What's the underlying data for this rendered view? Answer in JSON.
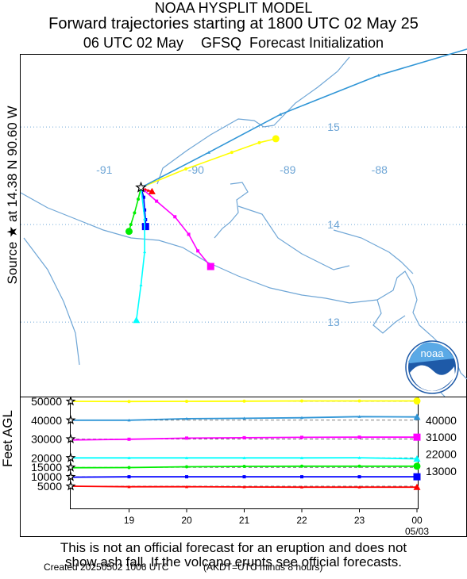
{
  "header": {
    "line1": "NOAA HYSPLIT MODEL",
    "line2": "Forward trajectories starting at 1800 UTC 02 May 25",
    "line3a": "06 UTC 02 May",
    "line3b": "GFSQ",
    "line3c": "Forecast Initialization"
  },
  "side_label": "Source ★ at  14.38 N  90.60 W",
  "disclaimer": {
    "line1": "This is not an official forecast for an eruption and does not",
    "line2": "show ash fall. If the volcano erupts see official forecasts."
  },
  "created": "Created 20250502 1006 UTC",
  "time_note": "(AKDT=UTC minus 8 hours)",
  "logo_text": "noaa",
  "chart_data": [
    {
      "type": "line",
      "map": {
        "lon_labels": [
          "-91",
          "-90",
          "-89",
          "-88"
        ],
        "lon_values": [
          -91,
          -90,
          -89,
          -88
        ],
        "lat_labels": [
          "15",
          "14",
          "13"
        ],
        "lat_values": [
          15,
          14,
          13
        ],
        "source": {
          "lat": 14.38,
          "lon": -90.6
        }
      },
      "series": [
        {
          "color": "#ff0000",
          "marker": "triangle",
          "points": [
            [
              -90.6,
              14.38
            ],
            [
              -90.58,
              14.37
            ],
            [
              -90.55,
              14.36
            ],
            [
              -90.52,
              14.35
            ],
            [
              -90.48,
              14.34
            ]
          ]
        },
        {
          "color": "#0000ff",
          "marker": "square",
          "points": [
            [
              -90.6,
              14.38
            ],
            [
              -90.57,
              14.28
            ],
            [
              -90.56,
              14.15
            ],
            [
              -90.55,
              14.05
            ],
            [
              -90.55,
              13.98
            ]
          ]
        },
        {
          "color": "#00ee00",
          "marker": "circle",
          "points": [
            [
              -90.6,
              14.38
            ],
            [
              -90.63,
              14.26
            ],
            [
              -90.67,
              14.12
            ],
            [
              -90.71,
              14.0
            ],
            [
              -90.73,
              13.93
            ]
          ]
        },
        {
          "color": "#00ffff",
          "marker": "triangle",
          "points": [
            [
              -90.6,
              14.38
            ],
            [
              -90.56,
              14.06
            ],
            [
              -90.56,
              13.72
            ],
            [
              -90.6,
              13.38
            ],
            [
              -90.65,
              13.02
            ]
          ]
        },
        {
          "color": "#ff00ff",
          "marker": "square",
          "points": [
            [
              -90.6,
              14.38
            ],
            [
              -90.43,
              14.24
            ],
            [
              -90.23,
              14.08
            ],
            [
              -90.08,
              13.9
            ],
            [
              -89.98,
              13.73
            ],
            [
              -89.84,
              13.57
            ]
          ]
        },
        {
          "color": "#ffff00",
          "marker": "circle",
          "points": [
            [
              -90.6,
              14.38
            ],
            [
              -90.11,
              14.57
            ],
            [
              -89.61,
              14.74
            ],
            [
              -89.31,
              14.84
            ],
            [
              -89.13,
              14.88
            ]
          ]
        },
        {
          "color": "#2f95d6",
          "marker": "triangle",
          "points": [
            [
              -90.6,
              14.38
            ],
            [
              -89.86,
              14.74
            ],
            [
              -89.08,
              15.13
            ],
            [
              -88.01,
              15.53
            ],
            [
              -86.97,
              15.82
            ]
          ]
        }
      ]
    },
    {
      "type": "line",
      "ylabel": "Feet AGL",
      "x_tick_labels": [
        "19",
        "20",
        "21",
        "22",
        "23",
        "00",
        "05/03"
      ],
      "y_ticks_left": [
        50000,
        40000,
        30000,
        20000,
        15000,
        10000,
        5000
      ],
      "y_ticks_right": [
        40000,
        31000,
        22000,
        13000
      ],
      "series": [
        {
          "color": "#ffff00",
          "marker": "circle",
          "x": [
            18,
            19,
            20,
            21,
            22,
            23,
            24
          ],
          "y": [
            50000,
            49900,
            50000,
            50100,
            50200,
            50200,
            50200
          ]
        },
        {
          "color": "#2f95d6",
          "marker": "triangle",
          "x": [
            18,
            19,
            20,
            21,
            22,
            23,
            24
          ],
          "y": [
            40000,
            40000,
            40800,
            41000,
            41300,
            41900,
            41700
          ]
        },
        {
          "color": "#ff00ff",
          "marker": "square",
          "x": [
            18,
            19,
            20,
            21,
            22,
            23,
            24
          ],
          "y": [
            29500,
            29900,
            30500,
            30700,
            30900,
            31000,
            31000
          ]
        },
        {
          "color": "#00ffff",
          "marker": "triangle",
          "x": [
            18,
            19,
            20,
            21,
            22,
            23,
            24
          ],
          "y": [
            20000,
            20000,
            20000,
            20000,
            20000,
            20100,
            19500
          ]
        },
        {
          "color": "#00ee00",
          "marker": "circle",
          "x": [
            18,
            19,
            20,
            21,
            22,
            23,
            24
          ],
          "y": [
            14800,
            14900,
            15300,
            15500,
            15600,
            15600,
            15600
          ]
        },
        {
          "color": "#0000ff",
          "marker": "square",
          "x": [
            18,
            19,
            20,
            21,
            22,
            23,
            24
          ],
          "y": [
            9800,
            10000,
            10000,
            10000,
            10000,
            10000,
            10000
          ]
        },
        {
          "color": "#ff0000",
          "marker": "triangle",
          "x": [
            18,
            19,
            20,
            21,
            22,
            23,
            24
          ],
          "y": [
            5000,
            4700,
            4700,
            4600,
            4500,
            4500,
            4500
          ]
        }
      ]
    }
  ]
}
